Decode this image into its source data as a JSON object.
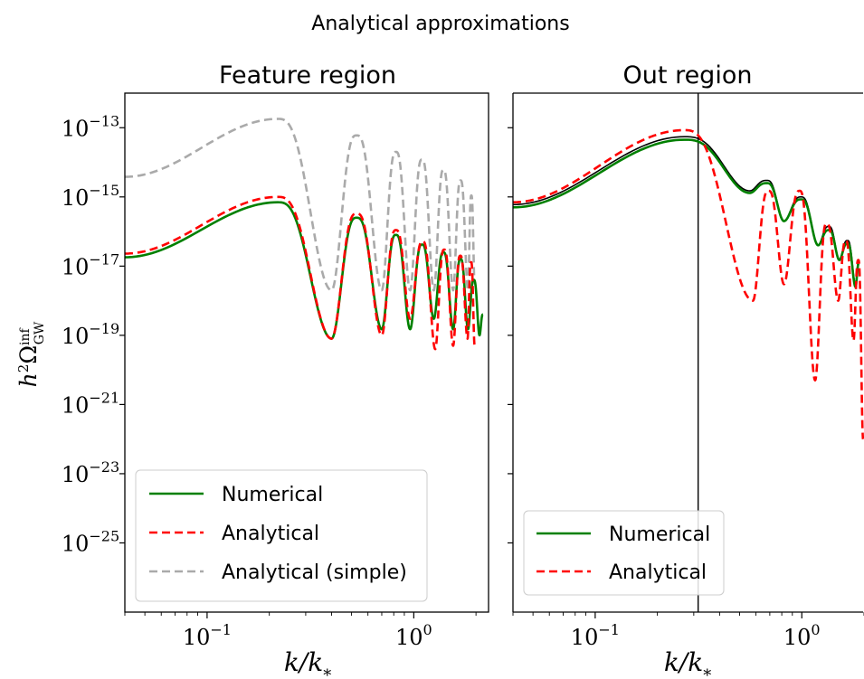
{
  "figure": {
    "title": "Analytical approximations"
  },
  "colors": {
    "numerical": "#008000",
    "analytical": "#ff0000",
    "simple": "#aaaaaa",
    "reference": "#000000"
  },
  "chart_data": [
    {
      "type": "line",
      "title": "Feature region",
      "xlabel": "k/k*",
      "ylabel": "h²Ω_GW^inf",
      "xscale": "log",
      "yscale": "log",
      "xlim": [
        0.04,
        2.3
      ],
      "ylim": [
        1e-27,
        1e-12
      ],
      "x_ticks": [
        {
          "base": "10",
          "exp": "−1"
        },
        {
          "base": "10",
          "exp": "0"
        }
      ],
      "y_ticks": [
        {
          "base": "10",
          "exp": "−13"
        },
        {
          "base": "10",
          "exp": "−15"
        },
        {
          "base": "10",
          "exp": "−17"
        },
        {
          "base": "10",
          "exp": "−19"
        },
        {
          "base": "10",
          "exp": "−21"
        },
        {
          "base": "10",
          "exp": "−23"
        },
        {
          "base": "10",
          "exp": "−25"
        }
      ],
      "legend": {
        "position": "lower left",
        "entries": [
          "Numerical",
          "Analytical",
          "Analytical (simple)"
        ]
      },
      "series": [
        {
          "name": "Numerical",
          "style": "solid",
          "color": "#008000",
          "peak_x": 0.22,
          "peak_y": 7e-16,
          "start_y": 1.8e-17,
          "dips": [
            [
              0.4,
              8e-20
            ],
            [
              0.7,
              1.5e-19
            ],
            [
              0.96,
              1.5e-19
            ],
            [
              1.25,
              3e-19
            ],
            [
              1.55,
              1.5e-19
            ],
            [
              1.83,
              1.5e-19
            ],
            [
              2.08,
              1e-19
            ]
          ],
          "bumps_y": [
            2.5e-16,
            8e-17,
            4.2e-17,
            2.5e-17,
            1.6e-17,
            4e-18,
            4e-19
          ]
        },
        {
          "name": "Analytical",
          "style": "dashed",
          "color": "#ff0000",
          "peak_x": 0.22,
          "peak_y": 1e-15,
          "start_y": 2.3e-17,
          "dips": [
            [
              0.4,
              8e-20
            ],
            [
              0.7,
              1e-19
            ],
            [
              0.96,
              3e-19
            ],
            [
              1.27,
              4e-20
            ],
            [
              1.55,
              5e-20
            ],
            [
              1.82,
              8e-20
            ],
            [
              1.97,
              5e-20
            ]
          ],
          "bumps_y": [
            3.3e-16,
            1.1e-16,
            5.2e-17,
            3e-17,
            2e-17,
            1.3e-17
          ]
        },
        {
          "name": "Analytical (simple)",
          "style": "dashed",
          "color": "#aaaaaa",
          "peak_x": 0.22,
          "peak_y": 1.8e-13,
          "start_y": 3.8e-15,
          "dips": [
            [
              0.4,
              2e-18
            ],
            [
              0.7,
              2e-18
            ],
            [
              0.96,
              2e-18
            ],
            [
              1.25,
              2e-18
            ],
            [
              1.55,
              2e-18
            ],
            [
              1.83,
              2e-18
            ],
            [
              1.97,
              3e-18
            ]
          ],
          "bumps_y": [
            6e-14,
            2e-14,
            1.2e-14,
            6e-15,
            3e-15,
            1.1e-15
          ]
        }
      ]
    },
    {
      "type": "line",
      "title": "Out region",
      "xlabel": "k/k*",
      "xscale": "log",
      "yscale": "log",
      "xlim": [
        0.04,
        2.0
      ],
      "ylim": [
        1e-27,
        1e-12
      ],
      "x_ticks": [
        {
          "base": "10",
          "exp": "−1"
        },
        {
          "base": "10",
          "exp": "0"
        }
      ],
      "vline_x": 0.315,
      "legend": {
        "position": "lower left",
        "entries": [
          "Numerical",
          "Analytical"
        ]
      },
      "series": [
        {
          "name": "",
          "style": "solid",
          "color": "#000000",
          "peak_x": 0.27,
          "peak_y": 5.5e-14,
          "start_y": 6e-16,
          "dips": [
            [
              0.56,
              1.5e-15
            ],
            [
              0.82,
              2e-16
            ],
            [
              1.2,
              4e-17
            ],
            [
              1.52,
              1.5e-17
            ],
            [
              1.82,
              3e-18
            ]
          ],
          "bumps_y": [
            3e-15,
            1e-15,
            1.4e-16,
            5.5e-17,
            1.5e-17
          ]
        },
        {
          "name": "Numerical",
          "style": "solid",
          "color": "#008000",
          "peak_x": 0.27,
          "peak_y": 4.5e-14,
          "start_y": 5e-16,
          "dips": [
            [
              0.56,
              1.3e-15
            ],
            [
              0.82,
              2e-16
            ],
            [
              1.2,
              4e-17
            ],
            [
              1.52,
              1.5e-17
            ],
            [
              1.82,
              2.5e-18
            ]
          ],
          "bumps_y": [
            2.5e-15,
            8.5e-16,
            1.1e-16,
            4.5e-17,
            1.2e-17
          ]
        },
        {
          "name": "Analytical",
          "style": "dashed",
          "color": "#ff0000",
          "peak_x": 0.27,
          "peak_y": 8.5e-14,
          "start_y": 7e-16,
          "dips": [
            [
              0.58,
              1e-18
            ],
            [
              0.82,
              3e-18
            ],
            [
              1.16,
              5e-21
            ],
            [
              1.5,
              1e-18
            ],
            [
              1.78,
              7e-20
            ],
            [
              1.98,
              1e-22
            ]
          ],
          "bumps_y": [
            1.5e-15,
            1.5e-15,
            1.7e-16,
            5.5e-17,
            1.5e-17
          ]
        }
      ]
    }
  ]
}
